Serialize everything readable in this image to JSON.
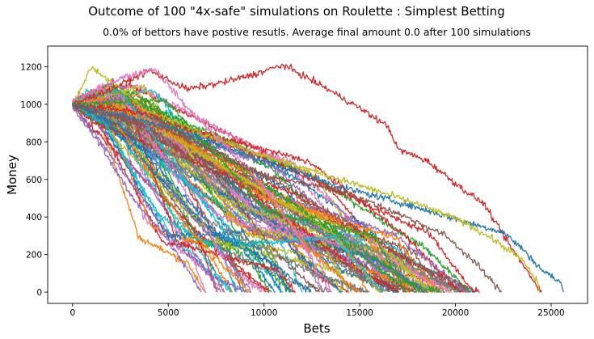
{
  "chart_data": {
    "type": "line",
    "suptitle": "Outcome of 100 \"4x-safe\" simulations on Roulette : Simplest Betting",
    "title": "0.0% of bettors have postive resutls. Average final amount 0.0 after 100 simulations",
    "xlabel": "Bets",
    "ylabel": "Money",
    "xlim": [
      -1300,
      26900
    ],
    "ylim": [
      -60,
      1310
    ],
    "xticks": [
      0,
      5000,
      10000,
      15000,
      20000,
      25000
    ],
    "yticks": [
      0,
      200,
      400,
      600,
      800,
      1000,
      1200
    ],
    "grid": false,
    "legend": "none",
    "n_series": 100,
    "start_value": 1000,
    "colors": [
      "#1f77b4",
      "#ff7f0e",
      "#2ca02c",
      "#d62728",
      "#9467bd",
      "#8c564b",
      "#e377c2",
      "#7f7f7f",
      "#bcbd22",
      "#17becf"
    ],
    "highlight_series": [
      {
        "color": "#d62728",
        "points": [
          [
            0,
            1000
          ],
          [
            2000,
            1080
          ],
          [
            4000,
            1180
          ],
          [
            6000,
            1080
          ],
          [
            8000,
            1120
          ],
          [
            9500,
            1160
          ],
          [
            11000,
            1210
          ],
          [
            13000,
            1100
          ],
          [
            15000,
            980
          ],
          [
            16500,
            880
          ],
          [
            17000,
            760
          ],
          [
            18500,
            700
          ],
          [
            19500,
            620
          ],
          [
            20500,
            540
          ],
          [
            21500,
            470
          ],
          [
            22500,
            300
          ],
          [
            23500,
            150
          ],
          [
            24500,
            0
          ]
        ]
      },
      {
        "color": "#1f77b4",
        "points": [
          [
            0,
            1000
          ],
          [
            5000,
            880
          ],
          [
            10000,
            700
          ],
          [
            14000,
            560
          ],
          [
            17000,
            480
          ],
          [
            19000,
            420
          ],
          [
            21000,
            360
          ],
          [
            22500,
            320
          ],
          [
            23500,
            230
          ],
          [
            24500,
            120
          ],
          [
            25500,
            50
          ],
          [
            25650,
            0
          ]
        ]
      },
      {
        "color": "#bcbd22",
        "points": [
          [
            0,
            1000
          ],
          [
            1000,
            1200
          ],
          [
            4000,
            960
          ],
          [
            9000,
            760
          ],
          [
            14000,
            600
          ],
          [
            18000,
            470
          ],
          [
            20500,
            370
          ],
          [
            22000,
            280
          ],
          [
            23500,
            170
          ],
          [
            24300,
            50
          ],
          [
            24400,
            0
          ]
        ]
      },
      {
        "color": "#e377c2",
        "points": [
          [
            0,
            1020
          ],
          [
            2500,
            1140
          ],
          [
            4300,
            1190
          ],
          [
            6000,
            980
          ],
          [
            8000,
            780
          ],
          [
            10000,
            560
          ],
          [
            11500,
            350
          ],
          [
            12500,
            180
          ],
          [
            13000,
            0
          ]
        ]
      },
      {
        "color": "#9467bd",
        "points": [
          [
            0,
            980
          ],
          [
            1500,
            780
          ],
          [
            3000,
            520
          ],
          [
            4800,
            300
          ],
          [
            6000,
            120
          ],
          [
            6700,
            0
          ]
        ]
      },
      {
        "color": "#8c564b",
        "points": [
          [
            0,
            1000
          ],
          [
            5000,
            860
          ],
          [
            10000,
            620
          ],
          [
            14000,
            540
          ],
          [
            17000,
            420
          ],
          [
            19500,
            300
          ],
          [
            21000,
            160
          ],
          [
            22400,
            0
          ]
        ]
      }
    ]
  }
}
